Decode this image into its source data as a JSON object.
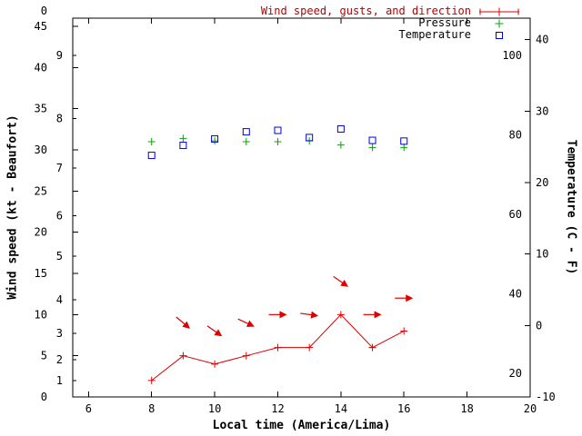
{
  "chart_data": {
    "type": "line",
    "title": "",
    "axes": {
      "x": {
        "label": "Local time (America/Lima)",
        "min": 5.5,
        "max": 20,
        "ticks": [
          6,
          8,
          10,
          12,
          14,
          16,
          18,
          20
        ]
      },
      "y_left": {
        "label": "Wind speed (kt - Beaufort)",
        "min": 0,
        "max": 46,
        "ticks": [
          0,
          5,
          10,
          15,
          20,
          25,
          30,
          35,
          40,
          45
        ],
        "stray_top_label": "0",
        "beaufort_ticks": [
          {
            "label": "1",
            "kt": 2
          },
          {
            "label": "2",
            "kt": 4.5
          },
          {
            "label": "3",
            "kt": 7.7
          },
          {
            "label": "4",
            "kt": 11.8
          },
          {
            "label": "5",
            "kt": 17.1
          },
          {
            "label": "6",
            "kt": 22
          },
          {
            "label": "7",
            "kt": 27.8
          },
          {
            "label": "8",
            "kt": 33.8
          },
          {
            "label": "9",
            "kt": 41.5
          }
        ]
      },
      "y_right": {
        "label": "Temperature (C - F)",
        "min": -10,
        "max": 43,
        "ticks_c": [
          -10,
          0,
          10,
          20,
          30,
          40
        ],
        "ticks_f": [
          20,
          40,
          60,
          80,
          100
        ]
      }
    },
    "series": {
      "wind": {
        "name": "Wind speed, gusts, and direction",
        "color": "#dd0000",
        "marker": "plus",
        "x": [
          8,
          9,
          10,
          11,
          12,
          13,
          14,
          15,
          16
        ],
        "kt": [
          2,
          5,
          4,
          5,
          6,
          6,
          10,
          6,
          8
        ]
      },
      "wind_arrows": {
        "name": "Wind gust direction",
        "color": "#dd0000",
        "points": [
          {
            "x": 9,
            "kt": 9,
            "deg": 40
          },
          {
            "x": 10,
            "kt": 8,
            "deg": 35
          },
          {
            "x": 11,
            "kt": 9,
            "deg": 25
          },
          {
            "x": 12,
            "kt": 10,
            "deg": 0
          },
          {
            "x": 13,
            "kt": 10,
            "deg": 8
          },
          {
            "x": 14,
            "kt": 14,
            "deg": 35
          },
          {
            "x": 15,
            "kt": 10,
            "deg": 0
          },
          {
            "x": 16,
            "kt": 12,
            "deg": 0
          }
        ]
      },
      "pressure": {
        "name": "Pressure",
        "color": "#00aa00",
        "marker": "plus",
        "x": [
          8,
          9,
          10,
          11,
          12,
          13,
          14,
          15,
          16
        ],
        "value_on_left_scale": [
          31.0,
          31.4,
          31.1,
          31.0,
          31.0,
          31.1,
          30.6,
          30.3,
          30.3
        ]
      },
      "temperature": {
        "name": "Temperature",
        "color": "#0000dd",
        "marker": "open-square",
        "x": [
          8,
          9,
          10,
          11,
          12,
          13,
          14,
          15,
          16
        ],
        "celsius": [
          23.8,
          25.2,
          26.1,
          27.1,
          27.3,
          26.3,
          27.5,
          25.9,
          25.8
        ]
      }
    },
    "legend": {
      "position": "top-right-inside",
      "entries": [
        {
          "label": "Wind speed, gusts, and direction",
          "label_color": "#b30000",
          "marker": "line-plus",
          "marker_color": "#dd0000"
        },
        {
          "label": "Pressure",
          "label_color": "#000000",
          "marker": "plus",
          "marker_color": "#00aa00"
        },
        {
          "label": "Temperature",
          "label_color": "#000000",
          "marker": "open-square",
          "marker_color": "#0000dd"
        }
      ]
    },
    "colors": {
      "axis": "#000000",
      "background": "#ffffff",
      "wind": "#dd0000",
      "pressure": "#00aa00",
      "temperature": "#0000dd"
    }
  }
}
